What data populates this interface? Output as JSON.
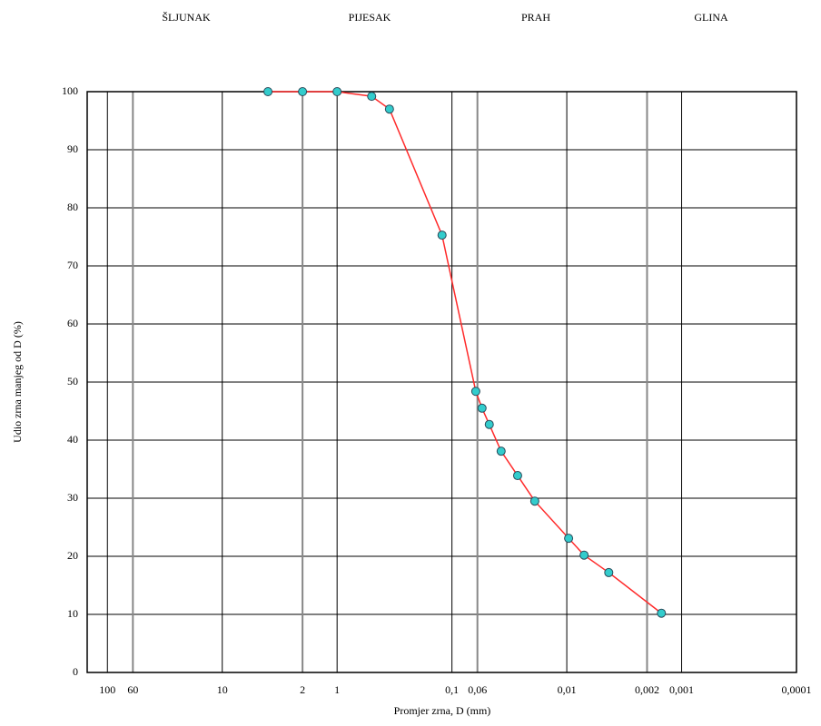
{
  "chart_data": {
    "type": "line",
    "annotations": [
      "ŠLJUNAK",
      "PIJESAK",
      "PRAH",
      "GLINA"
    ],
    "xlabel": "Promjer zrna, D (mm)",
    "ylabel": "Udio zrna manjeg od D (%)",
    "x": [
      4,
      2,
      1,
      0.5,
      0.35,
      0.122,
      0.062,
      0.0547,
      0.0473,
      0.0373,
      0.0268,
      0.019,
      0.00964,
      0.00707,
      0.00431,
      0.0015
    ],
    "series": [
      {
        "color": "#ff2a2a",
        "marker_color": "#33cccc",
        "values": [
          100,
          100,
          100,
          99.2,
          97,
          75.3,
          48.4,
          45.5,
          42.7,
          38.1,
          33.9,
          29.5,
          23.1,
          20.2,
          17.2,
          10.2
        ]
      }
    ],
    "xscale": "log",
    "xlim": [
      150,
      0.0001
    ],
    "xticks": [
      100,
      60,
      10,
      2,
      1,
      {
        "value": 0.1,
        "label": "0,1"
      },
      {
        "value": 0.06,
        "label": "0,06"
      },
      {
        "value": 0.01,
        "label": "0,01"
      },
      {
        "value": 0.002,
        "label": "0,002"
      },
      {
        "value": 0.001,
        "label": "0,001"
      },
      {
        "value": 0.0001,
        "label": "0,0001"
      }
    ],
    "ylim": [
      0,
      100
    ],
    "yticks": [
      0,
      10,
      20,
      30,
      40,
      50,
      60,
      70,
      80,
      90,
      100
    ],
    "grid": true
  }
}
